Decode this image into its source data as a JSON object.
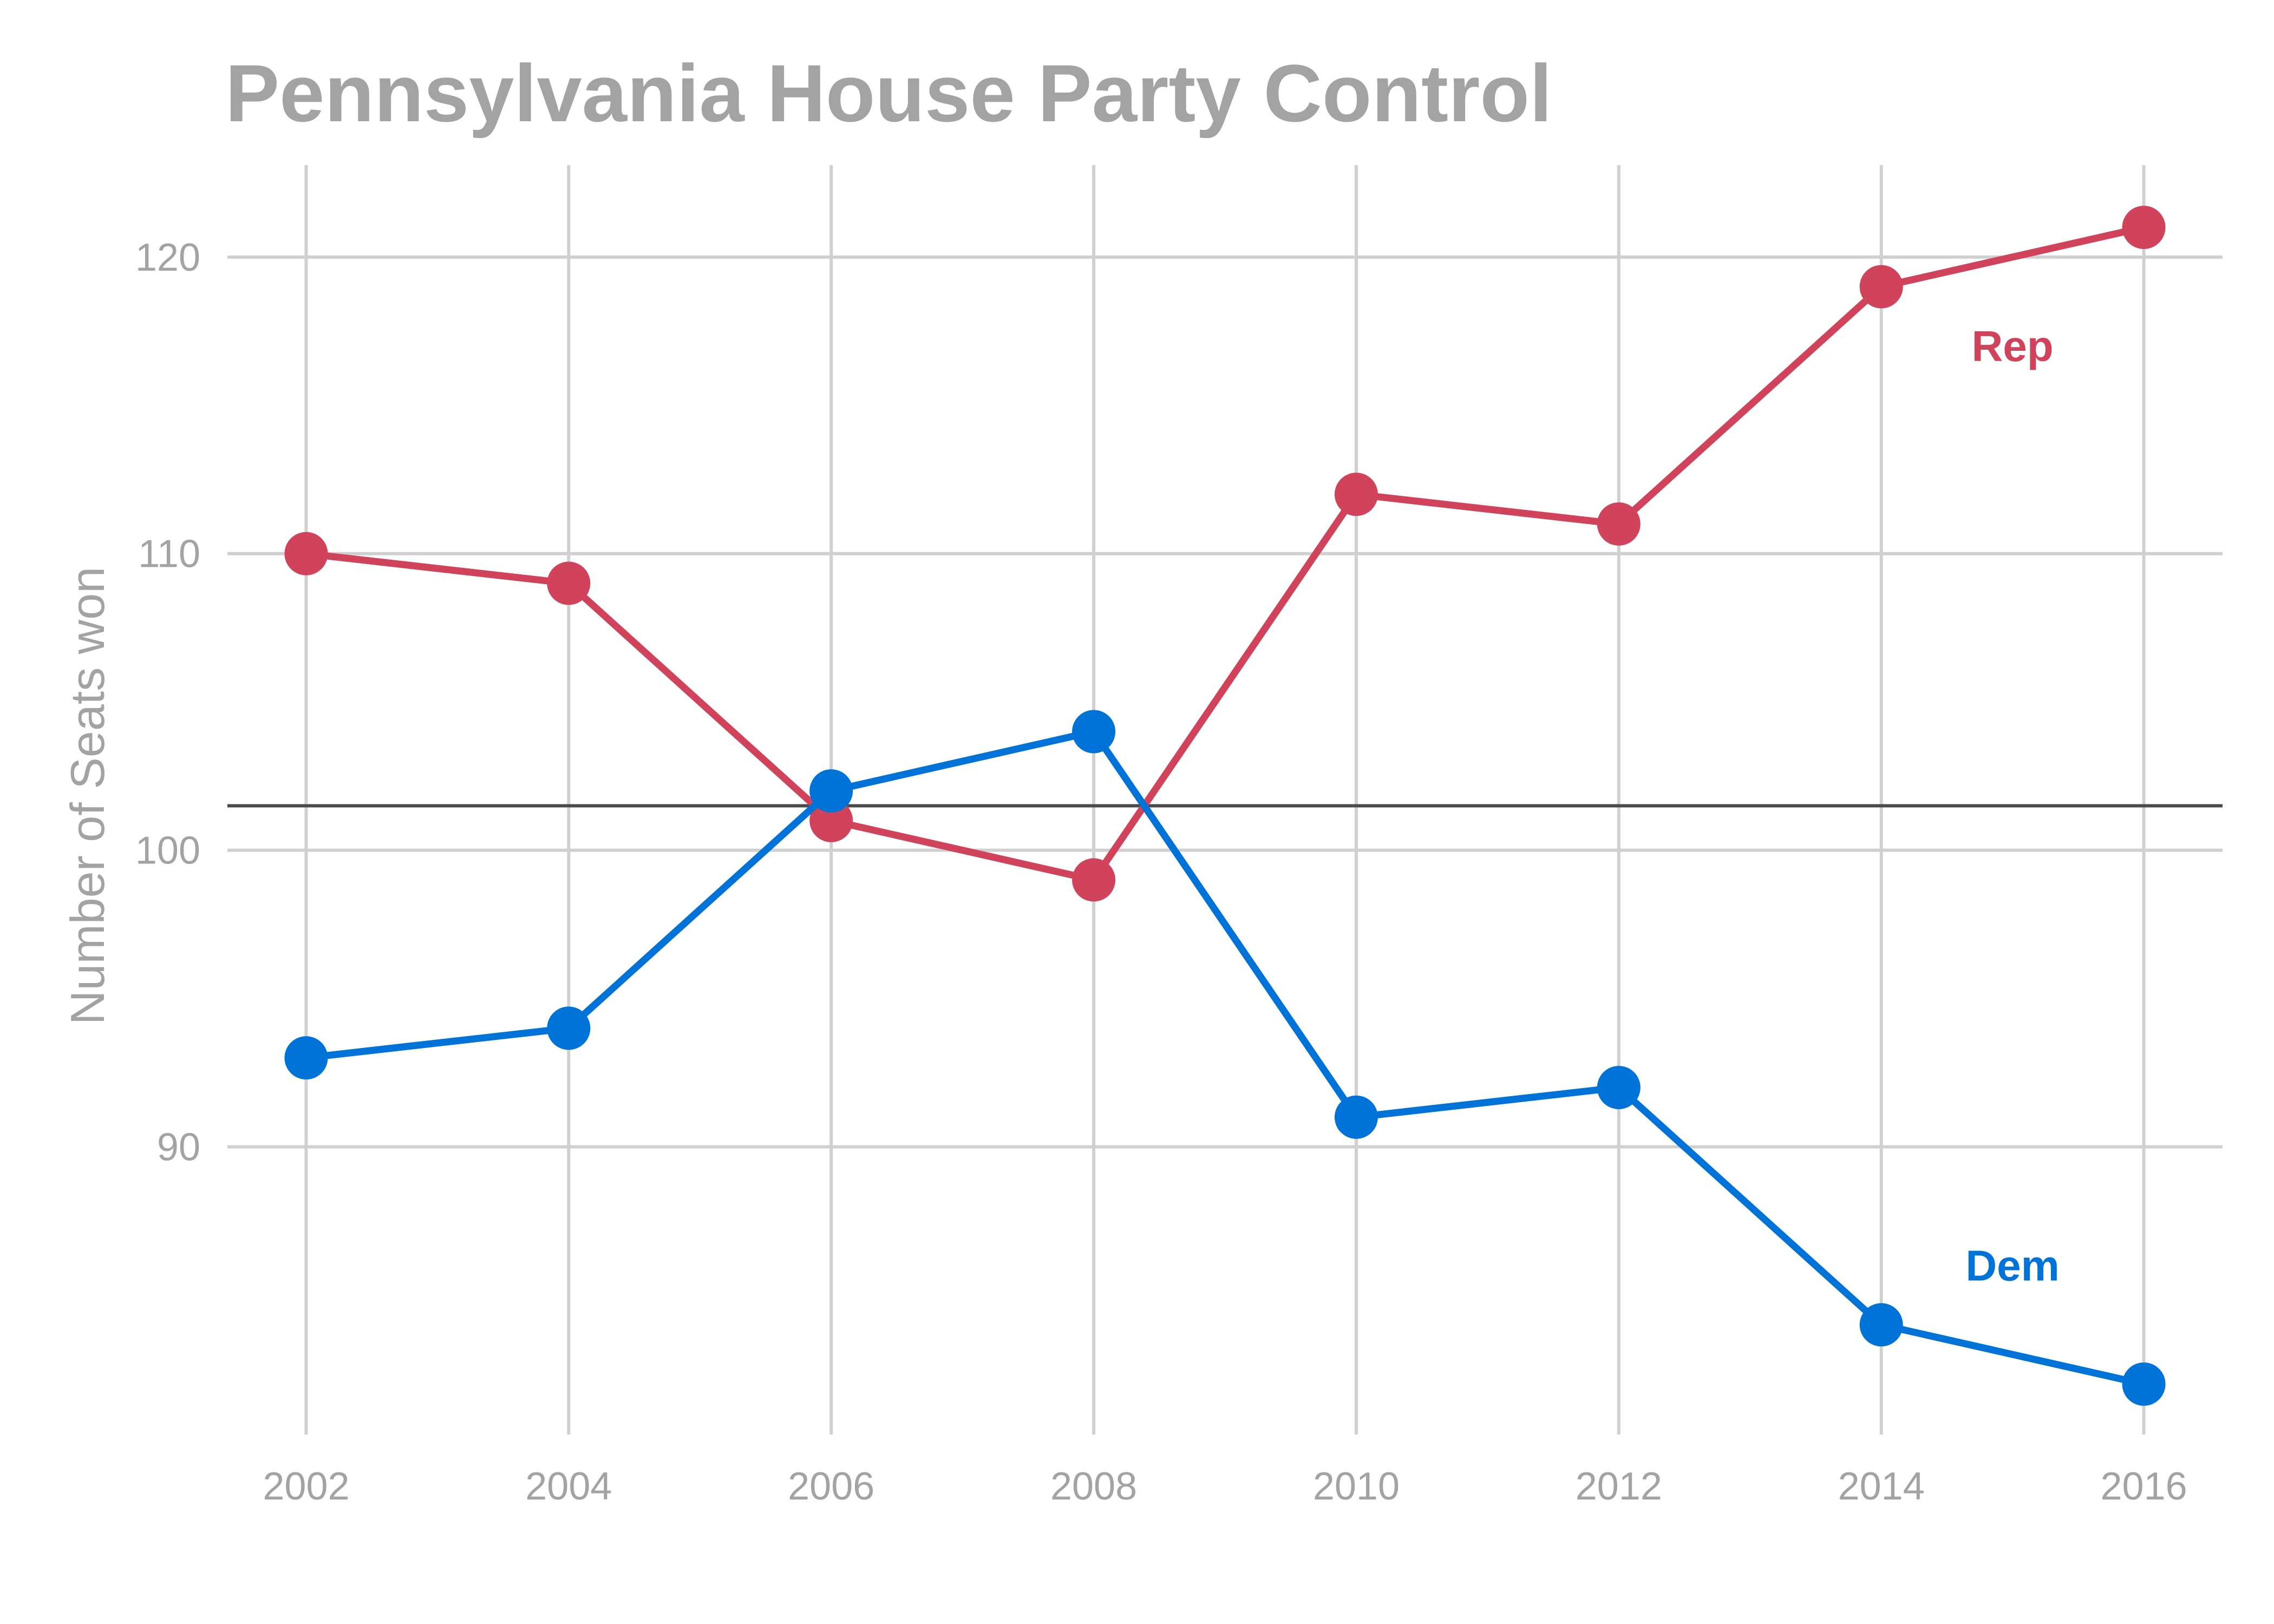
{
  "chart_data": {
    "type": "line",
    "title": "Pennsylvania House Party Control",
    "xlabel": "",
    "ylabel": "Number of Seats won",
    "x": [
      2002,
      2004,
      2006,
      2008,
      2010,
      2012,
      2014,
      2016
    ],
    "x_ticks": [
      "2002",
      "2004",
      "2006",
      "2008",
      "2010",
      "2012",
      "2014",
      "2016"
    ],
    "y_ticks": [
      "90",
      "100",
      "110",
      "120"
    ],
    "xlim": [
      2001.4,
      2016.6
    ],
    "ylim": [
      80.3,
      123.1
    ],
    "grid": true,
    "legend": "none",
    "reference_line_y": 101.5,
    "series": [
      {
        "name": "Rep",
        "color": "#d1435b",
        "values": [
          110,
          109,
          101,
          99,
          112,
          111,
          119,
          121
        ],
        "label_position": [
          2015.0,
          117
        ]
      },
      {
        "name": "Dem",
        "color": "#0073d9",
        "values": [
          93,
          94,
          102,
          104,
          91,
          92,
          84,
          82
        ],
        "label_position": [
          2015.0,
          86
        ]
      }
    ]
  }
}
